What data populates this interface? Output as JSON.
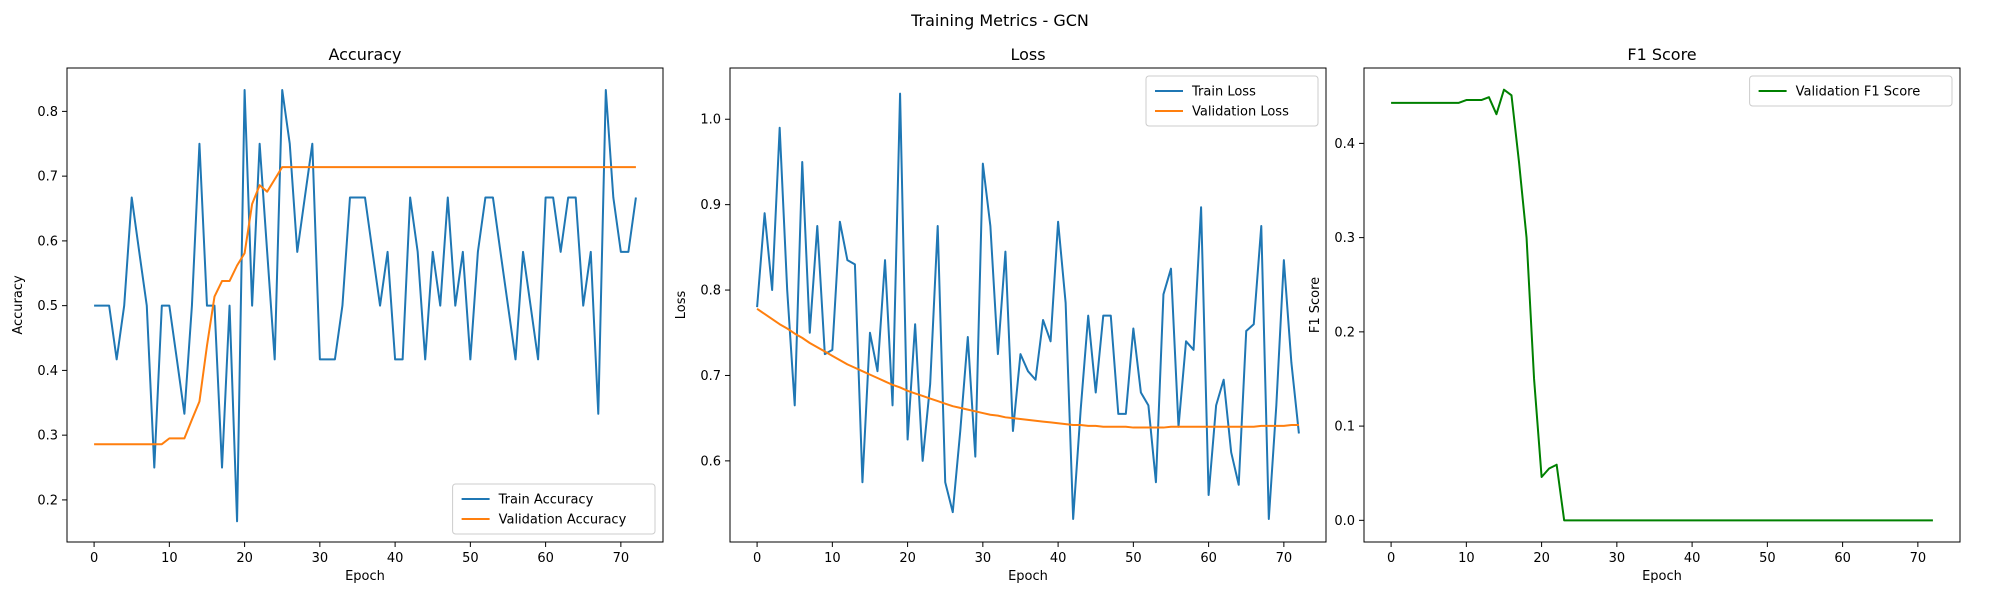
{
  "figure_title": "Training Metrics - GCN",
  "chart_data": [
    {
      "type": "line",
      "title": "Accuracy",
      "xlabel": "Epoch",
      "ylabel": "Accuracy",
      "xlim": [
        -3.6,
        75.6
      ],
      "ylim": [
        0.135,
        0.867
      ],
      "xticks": [
        0,
        10,
        20,
        30,
        40,
        50,
        60,
        70
      ],
      "yticks": [
        0.2,
        0.3,
        0.4,
        0.5,
        0.6,
        0.7,
        0.8
      ],
      "legend_position": "lower-right",
      "series": [
        {
          "name": "Train Accuracy",
          "color": "#1f77b4",
          "values": [
            0.5,
            0.5,
            0.5,
            0.417,
            0.5,
            0.667,
            0.583,
            0.5,
            0.25,
            0.5,
            0.5,
            0.417,
            0.333,
            0.5,
            0.75,
            0.5,
            0.5,
            0.25,
            0.5,
            0.167,
            0.833,
            0.5,
            0.75,
            0.583,
            0.417,
            0.833,
            0.75,
            0.583,
            0.667,
            0.75,
            0.417,
            0.417,
            0.417,
            0.5,
            0.667,
            0.667,
            0.667,
            0.583,
            0.5,
            0.583,
            0.417,
            0.417,
            0.667,
            0.583,
            0.417,
            0.583,
            0.5,
            0.667,
            0.5,
            0.583,
            0.417,
            0.583,
            0.667,
            0.667,
            0.583,
            0.5,
            0.417,
            0.583,
            0.5,
            0.417,
            0.667,
            0.667,
            0.583,
            0.667,
            0.667,
            0.5,
            0.583,
            0.333,
            0.833,
            0.667,
            0.583,
            0.583,
            0.667
          ]
        },
        {
          "name": "Validation Accuracy",
          "color": "#ff7f0e",
          "values": [
            0.286,
            0.286,
            0.286,
            0.286,
            0.286,
            0.286,
            0.286,
            0.286,
            0.286,
            0.286,
            0.295,
            0.295,
            0.295,
            0.324,
            0.352,
            0.438,
            0.514,
            0.538,
            0.538,
            0.562,
            0.581,
            0.657,
            0.686,
            0.676,
            0.695,
            0.714,
            0.714,
            0.714,
            0.714,
            0.714,
            0.714,
            0.714,
            0.714,
            0.714,
            0.714,
            0.714,
            0.714,
            0.714,
            0.714,
            0.714,
            0.714,
            0.714,
            0.714,
            0.714,
            0.714,
            0.714,
            0.714,
            0.714,
            0.714,
            0.714,
            0.714,
            0.714,
            0.714,
            0.714,
            0.714,
            0.714,
            0.714,
            0.714,
            0.714,
            0.714,
            0.714,
            0.714,
            0.714,
            0.714,
            0.714,
            0.714,
            0.714,
            0.714,
            0.714,
            0.714,
            0.714,
            0.714,
            0.714
          ]
        }
      ]
    },
    {
      "type": "line",
      "title": "Loss",
      "xlabel": "Epoch",
      "ylabel": "Loss",
      "xlim": [
        -3.6,
        75.6
      ],
      "ylim": [
        0.505,
        1.06
      ],
      "xticks": [
        0,
        10,
        20,
        30,
        40,
        50,
        60,
        70
      ],
      "yticks": [
        0.6,
        0.7,
        0.8,
        0.9,
        1.0
      ],
      "legend_position": "top-right",
      "series": [
        {
          "name": "Train Loss",
          "color": "#1f77b4",
          "values": [
            0.78,
            0.89,
            0.8,
            0.99,
            0.8,
            0.665,
            0.95,
            0.75,
            0.875,
            0.725,
            0.73,
            0.88,
            0.835,
            0.83,
            0.575,
            0.75,
            0.705,
            0.835,
            0.665,
            1.03,
            0.625,
            0.76,
            0.6,
            0.69,
            0.875,
            0.575,
            0.54,
            0.635,
            0.745,
            0.605,
            0.948,
            0.875,
            0.725,
            0.845,
            0.635,
            0.725,
            0.705,
            0.695,
            0.765,
            0.74,
            0.88,
            0.785,
            0.532,
            0.66,
            0.77,
            0.68,
            0.77,
            0.77,
            0.655,
            0.655,
            0.755,
            0.68,
            0.665,
            0.575,
            0.795,
            0.825,
            0.64,
            0.74,
            0.73,
            0.897,
            0.56,
            0.665,
            0.695,
            0.61,
            0.572,
            0.752,
            0.76,
            0.875,
            0.532,
            0.665,
            0.835,
            0.715,
            0.632
          ]
        },
        {
          "name": "Validation Loss",
          "color": "#ff7f0e",
          "values": [
            0.778,
            0.772,
            0.766,
            0.76,
            0.755,
            0.749,
            0.744,
            0.738,
            0.733,
            0.728,
            0.723,
            0.718,
            0.713,
            0.709,
            0.705,
            0.701,
            0.697,
            0.693,
            0.689,
            0.686,
            0.682,
            0.679,
            0.676,
            0.673,
            0.67,
            0.667,
            0.664,
            0.662,
            0.66,
            0.658,
            0.656,
            0.654,
            0.653,
            0.651,
            0.65,
            0.649,
            0.648,
            0.647,
            0.646,
            0.645,
            0.644,
            0.643,
            0.642,
            0.642,
            0.641,
            0.641,
            0.64,
            0.64,
            0.64,
            0.64,
            0.639,
            0.639,
            0.639,
            0.639,
            0.639,
            0.64,
            0.64,
            0.64,
            0.64,
            0.64,
            0.64,
            0.64,
            0.64,
            0.64,
            0.64,
            0.64,
            0.64,
            0.641,
            0.641,
            0.641,
            0.641,
            0.642,
            0.642
          ]
        }
      ]
    },
    {
      "type": "line",
      "title": "F1 Score",
      "xlabel": "Epoch",
      "ylabel": "F1 Score",
      "xlim": [
        -3.6,
        75.6
      ],
      "ylim": [
        -0.023,
        0.48
      ],
      "xticks": [
        0,
        10,
        20,
        30,
        40,
        50,
        60,
        70
      ],
      "yticks": [
        0.0,
        0.1,
        0.2,
        0.3,
        0.4
      ],
      "legend_position": "top-right",
      "series": [
        {
          "name": "Validation F1 Score",
          "color": "#008000",
          "values": [
            0.443,
            0.443,
            0.443,
            0.443,
            0.443,
            0.443,
            0.443,
            0.443,
            0.443,
            0.443,
            0.446,
            0.446,
            0.446,
            0.449,
            0.431,
            0.457,
            0.451,
            0.38,
            0.3,
            0.15,
            0.046,
            0.055,
            0.059,
            0.0,
            0.0,
            0.0,
            0.0,
            0.0,
            0.0,
            0.0,
            0.0,
            0.0,
            0.0,
            0.0,
            0.0,
            0.0,
            0.0,
            0.0,
            0.0,
            0.0,
            0.0,
            0.0,
            0.0,
            0.0,
            0.0,
            0.0,
            0.0,
            0.0,
            0.0,
            0.0,
            0.0,
            0.0,
            0.0,
            0.0,
            0.0,
            0.0,
            0.0,
            0.0,
            0.0,
            0.0,
            0.0,
            0.0,
            0.0,
            0.0,
            0.0,
            0.0,
            0.0,
            0.0,
            0.0,
            0.0,
            0.0,
            0.0,
            0.0
          ]
        }
      ]
    }
  ]
}
